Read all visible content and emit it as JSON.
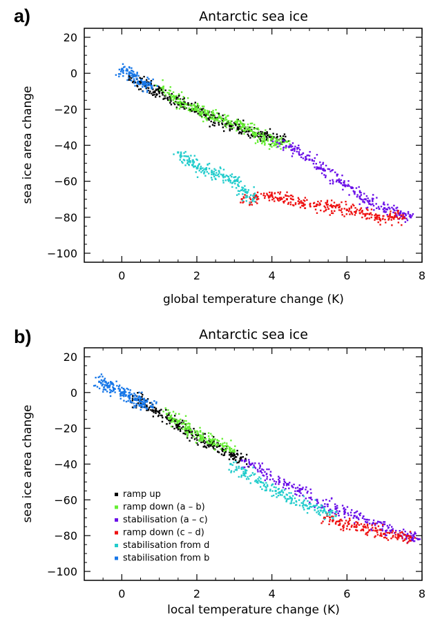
{
  "figure": {
    "panels": [
      {
        "letter": "a)"
      },
      {
        "letter": "b)"
      }
    ]
  },
  "chart_data": [
    {
      "type": "scatter",
      "panel": "a)",
      "title": "Antarctic sea ice",
      "xlabel": "global temperature change (K)",
      "ylabel": "sea ice area change",
      "xlim": [
        -1,
        8
      ],
      "ylim": [
        -105,
        25
      ],
      "xticks": [
        0,
        2,
        4,
        6,
        8
      ],
      "yticks": [
        20,
        0,
        -20,
        -40,
        -60,
        -80,
        -100
      ],
      "grid": false,
      "legend": "none",
      "series": [
        {
          "color": "#000000",
          "x": [
            0.2,
            0.5,
            0.8,
            1.0,
            1.3,
            1.6,
            1.9,
            2.2,
            2.5,
            2.8,
            3.1,
            3.4,
            3.7,
            4.0,
            4.3
          ],
          "y": [
            -2,
            -5,
            -8,
            -10,
            -14,
            -17,
            -20,
            -23,
            -25,
            -28,
            -30,
            -32,
            -34,
            -36,
            -38
          ]
        },
        {
          "color": "#66ee33",
          "x": [
            1.1,
            1.4,
            1.7,
            2.0,
            2.3,
            2.6,
            2.9,
            3.2,
            3.5,
            3.8,
            4.1,
            4.4
          ],
          "y": [
            -8,
            -14,
            -17,
            -20,
            -23,
            -24,
            -28,
            -28,
            -33,
            -36,
            -38,
            -38
          ]
        },
        {
          "color": "#6a0fe8",
          "x": [
            4.2,
            4.6,
            5.0,
            5.4,
            5.8,
            6.2,
            6.6,
            7.0,
            7.4,
            7.7
          ],
          "y": [
            -39,
            -42,
            -48,
            -54,
            -60,
            -66,
            -71,
            -75,
            -78,
            -80
          ]
        },
        {
          "color": "#ee1111",
          "x": [
            3.2,
            3.6,
            4.0,
            4.4,
            4.8,
            5.2,
            5.6,
            6.0,
            6.4,
            6.8,
            7.2,
            7.5
          ],
          "y": [
            -70,
            -69,
            -68,
            -70,
            -72,
            -73,
            -74,
            -76,
            -77,
            -80,
            -80,
            -80
          ]
        },
        {
          "color": "#22cccc",
          "x": [
            1.5,
            1.8,
            2.1,
            2.4,
            2.7,
            3.0,
            3.3,
            3.5
          ],
          "y": [
            -44,
            -49,
            -53,
            -55,
            -57,
            -60,
            -66,
            -70
          ]
        },
        {
          "color": "#1777e8",
          "x": [
            0.0,
            0.2,
            0.4,
            0.6,
            0.8
          ],
          "y": [
            2,
            0,
            -3,
            -6,
            -8
          ]
        }
      ]
    },
    {
      "type": "scatter",
      "panel": "b)",
      "title": "Antarctic sea ice",
      "xlabel": "local temperature change (K)",
      "ylabel": "sea ice area change",
      "xlim": [
        -1,
        8
      ],
      "ylim": [
        -105,
        25
      ],
      "xticks": [
        0,
        2,
        4,
        6,
        8
      ],
      "yticks": [
        20,
        0,
        -20,
        -40,
        -60,
        -80,
        -100
      ],
      "grid": false,
      "legend": "bottom-left",
      "series": [
        {
          "name": "ramp up",
          "color": "#000000",
          "x": [
            0.3,
            0.6,
            0.9,
            1.2,
            1.5,
            1.8,
            2.1,
            2.4,
            2.7,
            3.0,
            3.3
          ],
          "y": [
            -2,
            -6,
            -10,
            -14,
            -18,
            -22,
            -26,
            -29,
            -32,
            -35,
            -38
          ]
        },
        {
          "name": "ramp down (a – b)",
          "color": "#66ee33",
          "x": [
            1.2,
            1.5,
            1.8,
            2.1,
            2.4,
            2.7,
            3.0
          ],
          "y": [
            -12,
            -16,
            -20,
            -24,
            -27,
            -30,
            -33
          ]
        },
        {
          "name": "stabilisation (a – c)",
          "color": "#6a0fe8",
          "x": [
            3.2,
            3.7,
            4.2,
            4.7,
            5.2,
            5.7,
            6.2,
            6.7,
            7.2,
            7.6,
            7.9
          ],
          "y": [
            -38,
            -44,
            -50,
            -55,
            -60,
            -65,
            -69,
            -73,
            -77,
            -80,
            -82
          ]
        },
        {
          "name": "ramp down (c – d)",
          "color": "#ee1111",
          "x": [
            5.4,
            5.8,
            6.2,
            6.6,
            7.0,
            7.4,
            7.7
          ],
          "y": [
            -70,
            -72,
            -75,
            -77,
            -79,
            -80,
            -81
          ]
        },
        {
          "name": "stabilisation from d",
          "color": "#22cccc",
          "x": [
            2.9,
            3.3,
            3.7,
            4.1,
            4.5,
            4.9,
            5.3,
            5.7
          ],
          "y": [
            -40,
            -45,
            -50,
            -55,
            -59,
            -63,
            -66,
            -69
          ]
        },
        {
          "name": "stabilisation from b",
          "color": "#1777e8",
          "x": [
            -0.6,
            -0.4,
            -0.2,
            0.0,
            0.2,
            0.4,
            0.6,
            0.8
          ],
          "y": [
            6,
            4,
            2,
            0,
            -2,
            -4,
            -6,
            -8
          ]
        }
      ]
    }
  ]
}
